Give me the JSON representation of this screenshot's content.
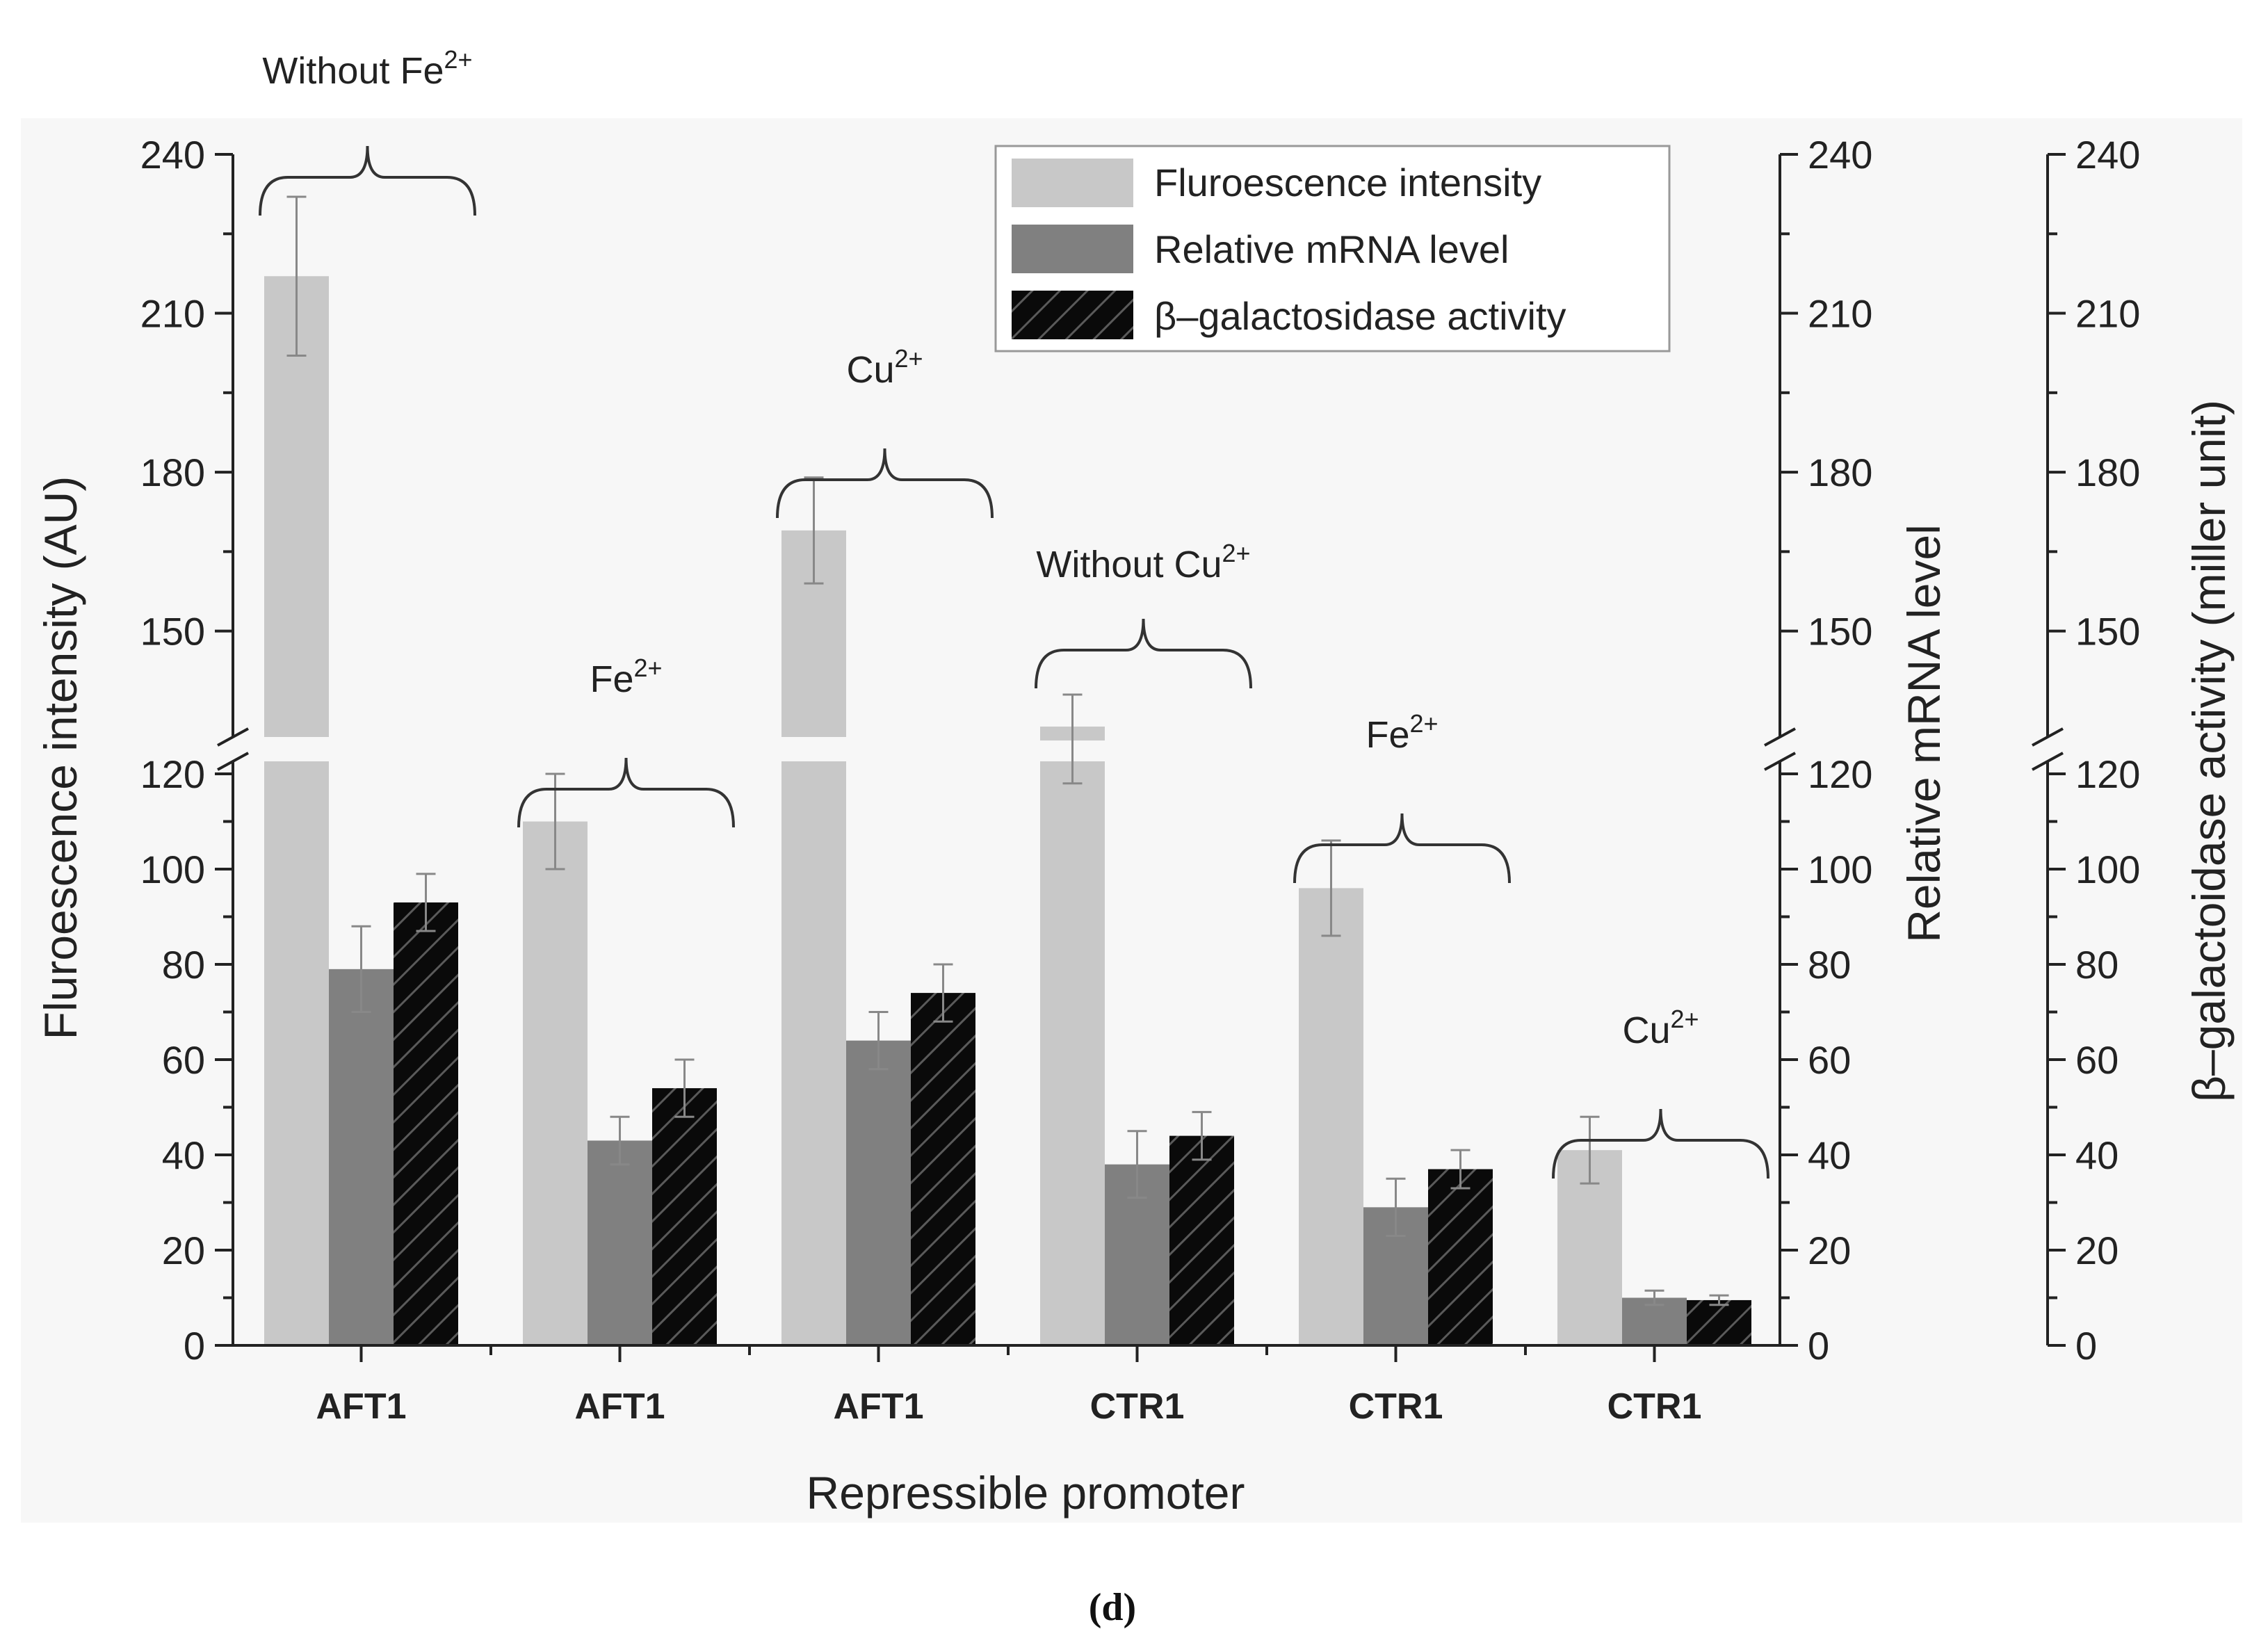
{
  "chart_data": {
    "type": "bar",
    "categories": [
      "AFT1",
      "AFT1",
      "AFT1",
      "CTR1",
      "CTR1",
      "CTR1"
    ],
    "series": [
      {
        "name": "Fluroescence intensity",
        "color": "#c8c8c8",
        "pattern": "solid",
        "values": [
          217,
          110,
          169,
          128,
          96,
          41
        ],
        "errors": [
          15,
          10,
          10,
          10,
          10,
          7
        ]
      },
      {
        "name": "Relative mRNA level",
        "color": "#808080",
        "pattern": "solid",
        "values": [
          79,
          43,
          64,
          38,
          29,
          10
        ],
        "errors": [
          9,
          5,
          6,
          7,
          6,
          1.5
        ]
      },
      {
        "name": "β–galactosidase activity",
        "color": "#0a0a0a",
        "pattern": "hatched",
        "values": [
          93,
          54,
          74,
          44,
          37,
          9.5
        ],
        "errors": [
          6,
          6,
          6,
          5,
          4,
          1
        ]
      }
    ],
    "xlabel": "Repressible promoter",
    "ylabel": "Fluroescence intensity (AU)",
    "ylabel_right1": "Relative mRNA level",
    "ylabel_right2": "β–galactoidase activity (miller unit)",
    "ylim": [
      0,
      240
    ],
    "axis_break": [
      120,
      130
    ],
    "lower_ticks": [
      0,
      20,
      40,
      60,
      80,
      100,
      120
    ],
    "upper_ticks": [
      150,
      180,
      210,
      240
    ],
    "legend_position": "top-center",
    "annotations": [
      {
        "label": "Without Fe",
        "sup": "2+",
        "group": 0
      },
      {
        "label": "Fe",
        "sup": "2+",
        "group": 1
      },
      {
        "label": "Cu",
        "sup": "2+",
        "group": 2
      },
      {
        "label": "Without Cu",
        "sup": "2+",
        "group": 3
      },
      {
        "label": "Fe",
        "sup": "2+",
        "group": 4
      },
      {
        "label": "Cu",
        "sup": "2+",
        "group": 5
      }
    ],
    "caption": "(d)"
  }
}
